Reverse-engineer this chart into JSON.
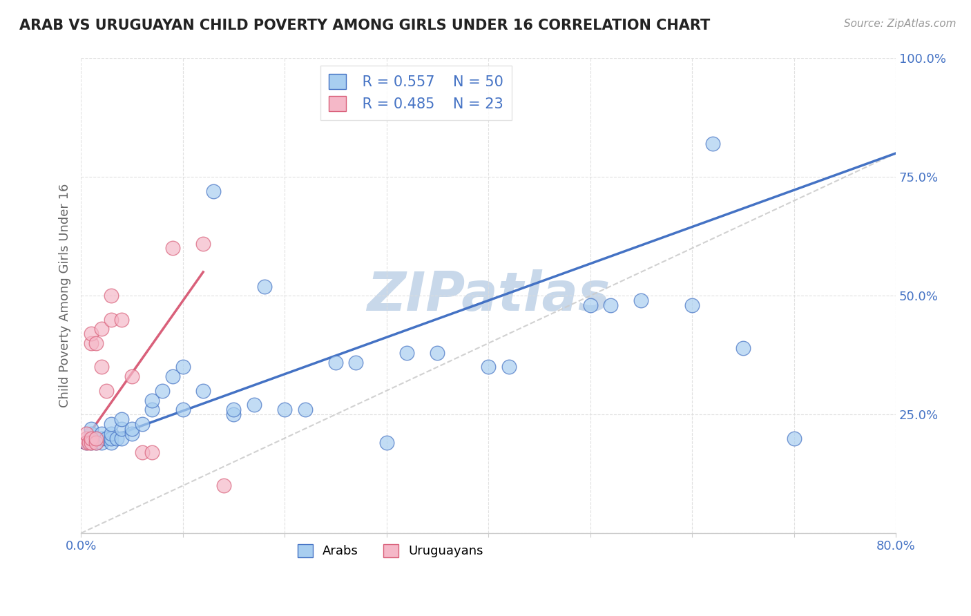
{
  "title": "ARAB VS URUGUAYAN CHILD POVERTY AMONG GIRLS UNDER 16 CORRELATION CHART",
  "source": "Source: ZipAtlas.com",
  "ylabel": "Child Poverty Among Girls Under 16",
  "xlim": [
    0.0,
    0.8
  ],
  "ylim": [
    0.0,
    1.0
  ],
  "xticks": [
    0.0,
    0.1,
    0.2,
    0.3,
    0.4,
    0.5,
    0.6,
    0.7,
    0.8
  ],
  "xticklabels": [
    "0.0%",
    "",
    "",
    "",
    "",
    "",
    "",
    "",
    "80.0%"
  ],
  "yticks": [
    0.0,
    0.25,
    0.5,
    0.75,
    1.0
  ],
  "yticklabels": [
    "",
    "25.0%",
    "50.0%",
    "75.0%",
    "100.0%"
  ],
  "arab_R": 0.557,
  "arab_N": 50,
  "uruguayan_R": 0.485,
  "uruguayan_N": 23,
  "arab_color": "#A8CEF0",
  "uruguayan_color": "#F5B8C8",
  "arab_line_color": "#4472C4",
  "uruguayan_line_color": "#D9607A",
  "ref_line_color": "#CCCCCC",
  "watermark": "ZIPatlas",
  "watermark_color": "#C8D8EA",
  "arab_x": [
    0.005,
    0.01,
    0.01,
    0.01,
    0.01,
    0.015,
    0.015,
    0.02,
    0.02,
    0.02,
    0.025,
    0.03,
    0.03,
    0.03,
    0.03,
    0.035,
    0.04,
    0.04,
    0.04,
    0.05,
    0.05,
    0.06,
    0.07,
    0.07,
    0.08,
    0.09,
    0.1,
    0.1,
    0.12,
    0.13,
    0.15,
    0.15,
    0.17,
    0.18,
    0.2,
    0.22,
    0.25,
    0.27,
    0.3,
    0.32,
    0.35,
    0.4,
    0.42,
    0.5,
    0.52,
    0.55,
    0.6,
    0.62,
    0.65,
    0.7
  ],
  "arab_y": [
    0.19,
    0.19,
    0.2,
    0.21,
    0.22,
    0.19,
    0.2,
    0.19,
    0.2,
    0.21,
    0.2,
    0.19,
    0.2,
    0.21,
    0.23,
    0.2,
    0.2,
    0.22,
    0.24,
    0.21,
    0.22,
    0.23,
    0.26,
    0.28,
    0.3,
    0.33,
    0.35,
    0.26,
    0.3,
    0.72,
    0.25,
    0.26,
    0.27,
    0.52,
    0.26,
    0.26,
    0.36,
    0.36,
    0.19,
    0.38,
    0.38,
    0.35,
    0.35,
    0.48,
    0.48,
    0.49,
    0.48,
    0.82,
    0.39,
    0.2
  ],
  "uru_x": [
    0.005,
    0.005,
    0.005,
    0.008,
    0.01,
    0.01,
    0.01,
    0.01,
    0.015,
    0.015,
    0.015,
    0.02,
    0.02,
    0.025,
    0.03,
    0.03,
    0.04,
    0.05,
    0.06,
    0.07,
    0.09,
    0.12,
    0.14
  ],
  "uru_y": [
    0.2,
    0.19,
    0.21,
    0.19,
    0.19,
    0.2,
    0.4,
    0.42,
    0.19,
    0.2,
    0.4,
    0.35,
    0.43,
    0.3,
    0.45,
    0.5,
    0.45,
    0.33,
    0.17,
    0.17,
    0.6,
    0.61,
    0.1
  ],
  "arab_line_x": [
    0.0,
    0.8
  ],
  "arab_line_y": [
    0.18,
    0.8
  ],
  "uru_line_x": [
    0.005,
    0.12
  ],
  "uru_line_y": [
    0.2,
    0.55
  ]
}
